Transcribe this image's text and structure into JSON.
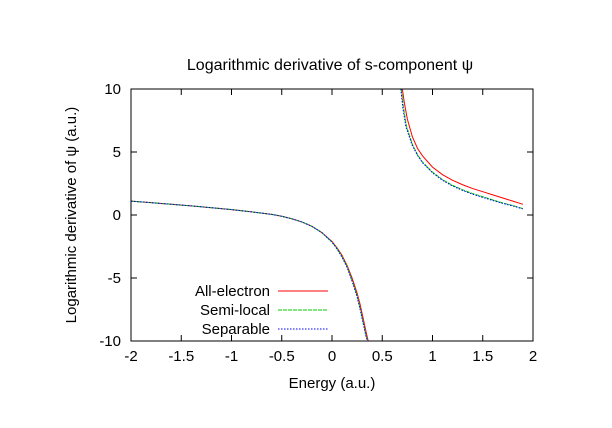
{
  "chart_data": {
    "type": "line",
    "title": "Logarithmic derivative of s-component ψ",
    "xlabel": "Energy (a.u.)",
    "ylabel": "Logarithmic derivative of ψ (a.u.)",
    "xlim": [
      -2,
      2
    ],
    "ylim": [
      -10,
      10
    ],
    "x_ticks": [
      -2,
      -1.5,
      -1,
      -0.5,
      0,
      0.5,
      1,
      1.5,
      2
    ],
    "x_tick_labels": [
      "-2",
      "-1.5",
      "-1",
      "-0.5",
      "0",
      "0.5",
      "1",
      "1.5",
      "2"
    ],
    "y_ticks": [
      -10,
      -5,
      0,
      5,
      10
    ],
    "y_tick_labels": [
      "-10",
      "-5",
      "0",
      "5",
      "10"
    ],
    "grid": false,
    "legend_position": "bottom-left",
    "series": [
      {
        "name": "All-electron",
        "color": "#ff0000",
        "dash": "",
        "x": [
          -2.0,
          -1.8,
          -1.6,
          -1.4,
          -1.2,
          -1.0,
          -0.8,
          -0.6,
          -0.5,
          -0.4,
          -0.3,
          -0.2,
          -0.1,
          0.0,
          0.05,
          0.1,
          0.15,
          0.2,
          0.25,
          0.28,
          0.31,
          0.34,
          0.36,
          null,
          0.7,
          0.72,
          0.75,
          0.8,
          0.85,
          0.9,
          1.0,
          1.1,
          1.2,
          1.3,
          1.4,
          1.5,
          1.6,
          1.7,
          1.8,
          1.9
        ],
        "y": [
          1.1,
          0.98,
          0.85,
          0.72,
          0.58,
          0.43,
          0.25,
          0.05,
          -0.1,
          -0.3,
          -0.55,
          -0.9,
          -1.4,
          -2.1,
          -2.6,
          -3.2,
          -4.0,
          -5.0,
          -6.2,
          -7.1,
          -8.2,
          -9.3,
          -10.0,
          null,
          10.0,
          8.9,
          7.6,
          6.2,
          5.3,
          4.7,
          3.8,
          3.2,
          2.75,
          2.4,
          2.1,
          1.85,
          1.6,
          1.35,
          1.1,
          0.85
        ]
      },
      {
        "name": "Semi-local",
        "color": "#00cc00",
        "dash": "4,1",
        "x": [
          -2.0,
          -1.8,
          -1.6,
          -1.4,
          -1.2,
          -1.0,
          -0.8,
          -0.6,
          -0.5,
          -0.4,
          -0.3,
          -0.2,
          -0.1,
          0.0,
          0.05,
          0.1,
          0.15,
          0.2,
          0.25,
          0.28,
          0.31,
          0.34,
          0.355,
          null,
          0.69,
          0.71,
          0.74,
          0.8,
          0.85,
          0.9,
          1.0,
          1.1,
          1.2,
          1.3,
          1.4,
          1.5,
          1.6,
          1.7,
          1.8,
          1.9
        ],
        "y": [
          1.1,
          0.98,
          0.85,
          0.72,
          0.58,
          0.43,
          0.25,
          0.05,
          -0.1,
          -0.3,
          -0.55,
          -0.9,
          -1.4,
          -2.15,
          -2.65,
          -3.3,
          -4.1,
          -5.2,
          -6.4,
          -7.4,
          -8.5,
          -9.6,
          -10.0,
          null,
          10.0,
          8.6,
          7.1,
          5.6,
          4.8,
          4.2,
          3.4,
          2.8,
          2.35,
          2.0,
          1.7,
          1.45,
          1.2,
          0.95,
          0.75,
          0.5
        ]
      },
      {
        "name": "Separable",
        "color": "#0000ff",
        "dash": "1.5,1.5",
        "x": [
          -2.0,
          -1.8,
          -1.6,
          -1.4,
          -1.2,
          -1.0,
          -0.8,
          -0.6,
          -0.5,
          -0.4,
          -0.3,
          -0.2,
          -0.1,
          0.0,
          0.05,
          0.1,
          0.15,
          0.2,
          0.25,
          0.28,
          0.31,
          0.34,
          0.353,
          null,
          0.685,
          0.705,
          0.735,
          0.8,
          0.85,
          0.9,
          1.0,
          1.1,
          1.2,
          1.3,
          1.4,
          1.5,
          1.6,
          1.7,
          1.8,
          1.9
        ],
        "y": [
          1.1,
          0.98,
          0.85,
          0.72,
          0.58,
          0.43,
          0.25,
          0.05,
          -0.1,
          -0.3,
          -0.55,
          -0.9,
          -1.4,
          -2.15,
          -2.7,
          -3.35,
          -4.15,
          -5.25,
          -6.5,
          -7.5,
          -8.6,
          -9.7,
          -10.0,
          null,
          10.0,
          8.5,
          7.0,
          5.5,
          4.75,
          4.15,
          3.35,
          2.75,
          2.3,
          1.95,
          1.65,
          1.4,
          1.15,
          0.92,
          0.72,
          0.48
        ]
      }
    ]
  }
}
